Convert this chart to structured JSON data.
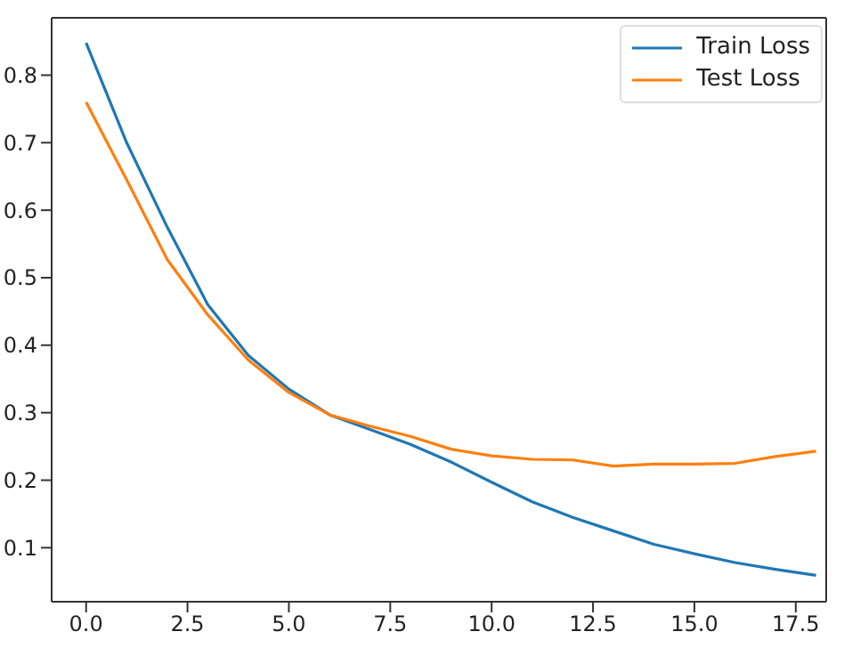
{
  "chart_data": {
    "type": "line",
    "x": [
      0,
      1,
      2,
      3,
      4,
      5,
      6,
      7,
      8,
      9,
      10,
      11,
      12,
      13,
      14,
      15,
      16,
      17,
      18
    ],
    "series": [
      {
        "name": "Train Loss",
        "color": "#1f77b4",
        "values": [
          0.848,
          0.7,
          0.575,
          0.46,
          0.385,
          0.335,
          0.297,
          0.275,
          0.253,
          0.227,
          0.197,
          0.168,
          0.145,
          0.125,
          0.105,
          0.091,
          0.078,
          0.068,
          0.059
        ]
      },
      {
        "name": "Test Loss",
        "color": "#ff7f0e",
        "values": [
          0.76,
          0.645,
          0.527,
          0.445,
          0.378,
          0.33,
          0.297,
          0.28,
          0.265,
          0.246,
          0.236,
          0.231,
          0.23,
          0.221,
          0.224,
          0.224,
          0.225,
          0.235,
          0.243
        ]
      }
    ],
    "xlim": [
      -0.85,
      18.25
    ],
    "ylim": [
      0.02,
      0.885
    ],
    "xticks": [
      {
        "value": 0,
        "label": "0.0"
      },
      {
        "value": 2.5,
        "label": "2.5"
      },
      {
        "value": 5,
        "label": "5.0"
      },
      {
        "value": 7.5,
        "label": "7.5"
      },
      {
        "value": 10,
        "label": "10.0"
      },
      {
        "value": 12.5,
        "label": "12.5"
      },
      {
        "value": 15,
        "label": "15.0"
      },
      {
        "value": 17.5,
        "label": "17.5"
      }
    ],
    "yticks": [
      0.1,
      0.2,
      0.3,
      0.4,
      0.5,
      0.6,
      0.7,
      0.8
    ],
    "grid": false,
    "legend": "top right",
    "marker": "none",
    "line_style": "solid"
  }
}
